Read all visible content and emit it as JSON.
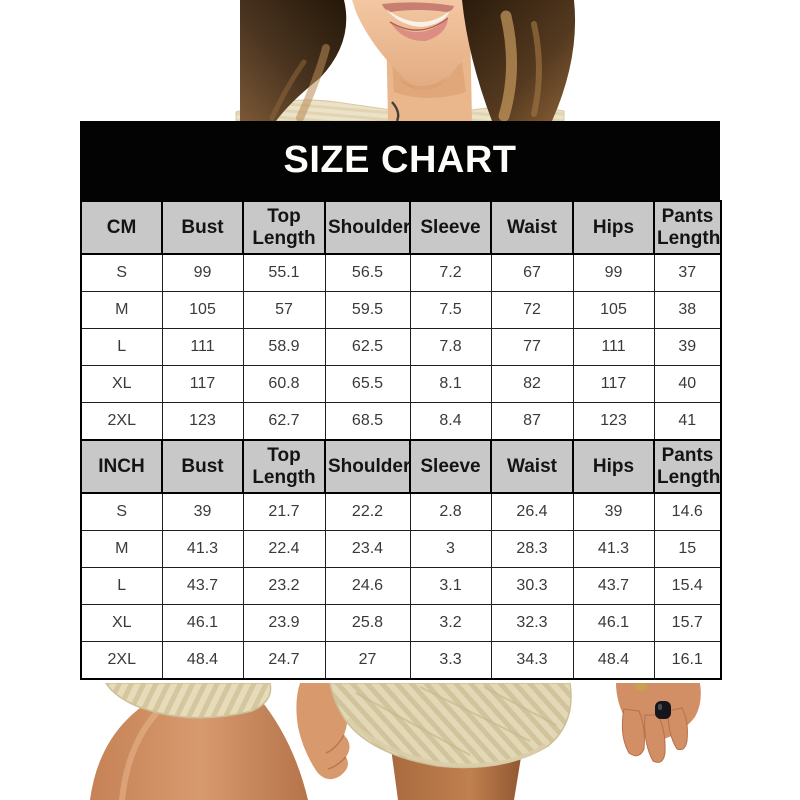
{
  "title": "SIZE CHART",
  "colors": {
    "title_bg": "#030303",
    "title_text": "#fdfdfd",
    "header_bg": "#c8c8c8",
    "cell_bg": "#ffffff",
    "border": "#000000",
    "hair_brown": "#3a2817",
    "hair_highlight": "#b98a55",
    "skin": "#d79a6e",
    "fabric_cream": "#e3d8b6",
    "nail_polish": "#15151c"
  },
  "chart_data": [
    {
      "type": "table",
      "unit": "CM",
      "columns": [
        "CM",
        "Bust",
        "Top Length",
        "Shoulder",
        "Sleeve",
        "Waist",
        "Hips",
        "Pants Length"
      ],
      "rows": [
        [
          "S",
          "99",
          "55.1",
          "56.5",
          "7.2",
          "67",
          "99",
          "37"
        ],
        [
          "M",
          "105",
          "57",
          "59.5",
          "7.5",
          "72",
          "105",
          "38"
        ],
        [
          "L",
          "111",
          "58.9",
          "62.5",
          "7.8",
          "77",
          "111",
          "39"
        ],
        [
          "XL",
          "117",
          "60.8",
          "65.5",
          "8.1",
          "82",
          "117",
          "40"
        ],
        [
          "2XL",
          "123",
          "62.7",
          "68.5",
          "8.4",
          "87",
          "123",
          "41"
        ]
      ]
    },
    {
      "type": "table",
      "unit": "INCH",
      "columns": [
        "INCH",
        "Bust",
        "Top Length",
        "Shoulder",
        "Sleeve",
        "Waist",
        "Hips",
        "Pants Length"
      ],
      "rows": [
        [
          "S",
          "39",
          "21.7",
          "22.2",
          "2.8",
          "26.4",
          "39",
          "14.6"
        ],
        [
          "M",
          "41.3",
          "22.4",
          "23.4",
          "3",
          "28.3",
          "41.3",
          "15"
        ],
        [
          "L",
          "43.7",
          "23.2",
          "24.6",
          "3.1",
          "30.3",
          "43.7",
          "15.4"
        ],
        [
          "XL",
          "46.1",
          "23.9",
          "25.8",
          "3.2",
          "32.3",
          "46.1",
          "15.7"
        ],
        [
          "2XL",
          "48.4",
          "24.7",
          "27",
          "3.3",
          "34.3",
          "48.4",
          "16.1"
        ]
      ]
    }
  ]
}
